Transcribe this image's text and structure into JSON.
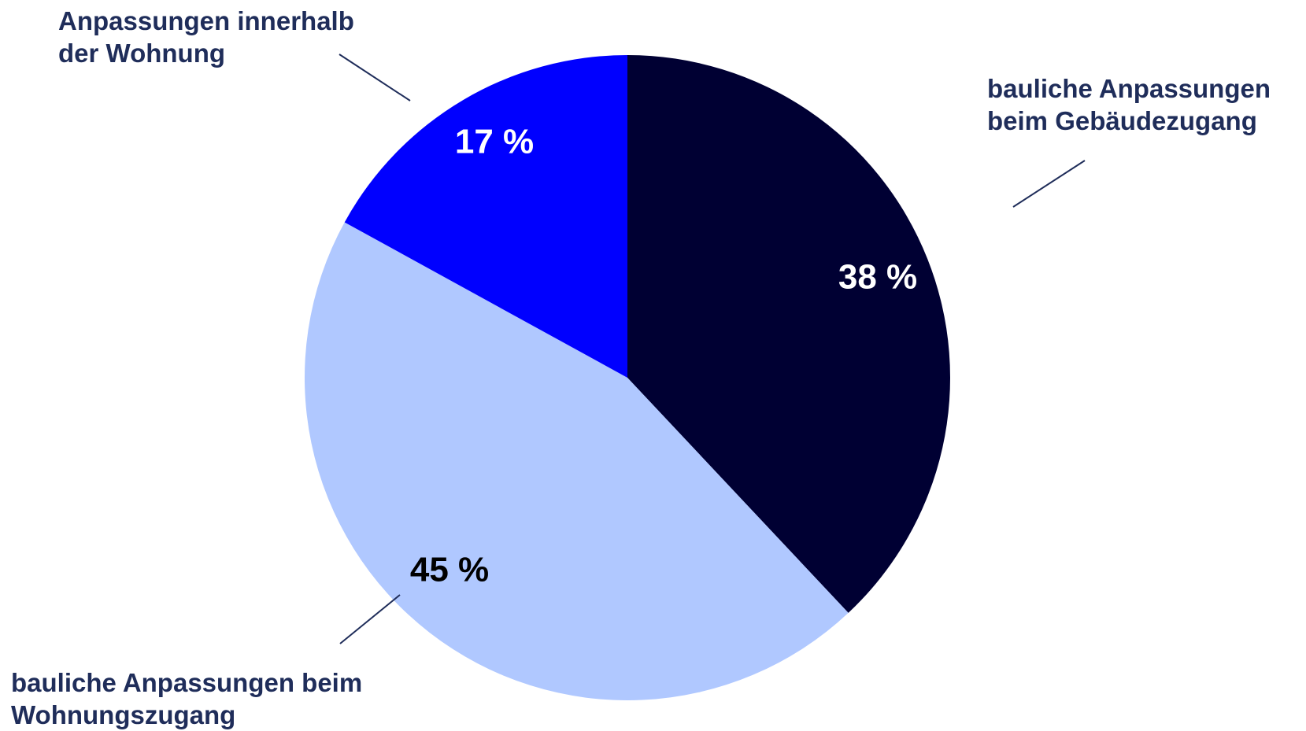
{
  "chart_data": {
    "type": "pie",
    "slices": [
      {
        "name": "bauliche Anpassungen beim Gebäudezugang",
        "value": 38,
        "label": "38 %",
        "color": "#000033",
        "label_color": "#ffffff",
        "legend_lines": [
          "bauliche Anpassungen",
          "beim Gebäudezugang"
        ]
      },
      {
        "name": "bauliche Anpassungen beim Wohnungszugang",
        "value": 45,
        "label": "45 %",
        "color": "#b0c8ff",
        "label_color": "#000000",
        "legend_lines": [
          "bauliche Anpassungen beim",
          "Wohnungszugang"
        ]
      },
      {
        "name": "Anpassungen innerhalb der Wohnung",
        "value": 17,
        "label": "17 %",
        "color": "#0000ff",
        "label_color": "#ffffff",
        "legend_lines": [
          "Anpassungen innerhalb",
          "der Wohnung"
        ]
      }
    ],
    "start": "12 o'clock",
    "direction": "clockwise",
    "callout_color": "#1f2d5a"
  }
}
